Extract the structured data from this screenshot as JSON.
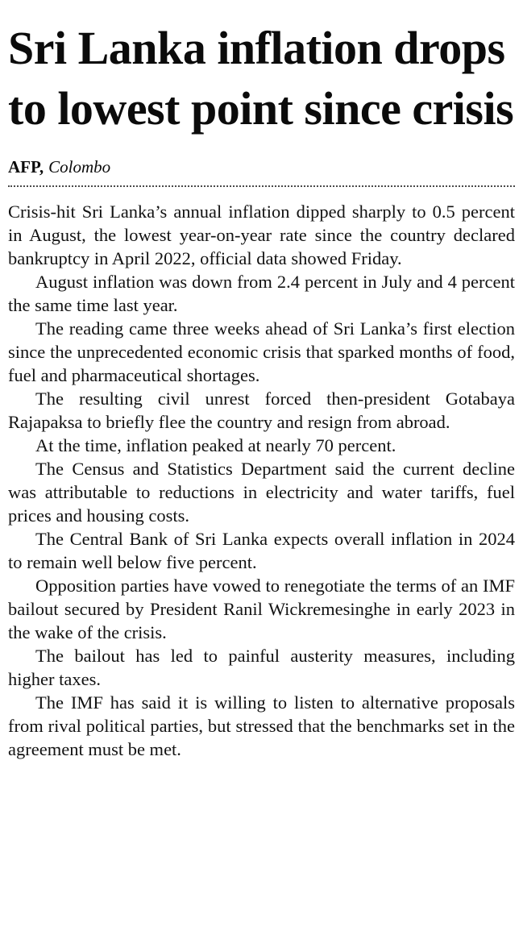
{
  "article": {
    "headline": "Sri Lanka inflation drops to lowest point since crisis",
    "byline": {
      "source": "AFP,",
      "location": "Colombo"
    },
    "paragraphs": [
      "Crisis-hit Sri Lanka’s annual inflation dipped sharply to 0.5 percent in August, the lowest year-on-year rate since the country declared bankruptcy in April 2022, official data showed Friday.",
      "August inflation was down from 2.4 percent in July and 4 percent the same time last year.",
      "The reading came three weeks ahead of Sri Lanka’s first election since the unprecedented economic crisis that sparked months of food, fuel and pharmaceutical shortages.",
      "The resulting civil unrest forced then-president Gotabaya Rajapaksa to briefly flee the country and resign from abroad.",
      "At the time, inflation peaked at nearly 70 percent.",
      "The Census and Statistics Department said the current decline was attributable to reductions in electricity and water tariffs, fuel prices and housing costs.",
      "The Central Bank of Sri Lanka expects overall inflation in 2024 to remain well below five percent.",
      "Opposition parties have vowed to renegotiate the terms of an IMF bailout secured by President Ranil Wickremesinghe in early 2023 in the wake of the crisis.",
      "The bailout has led to painful austerity measures, including higher taxes.",
      "The IMF has said it is willing to listen to alternative proposals from rival political parties, but stressed that the benchmarks set in the agreement must be met."
    ]
  }
}
